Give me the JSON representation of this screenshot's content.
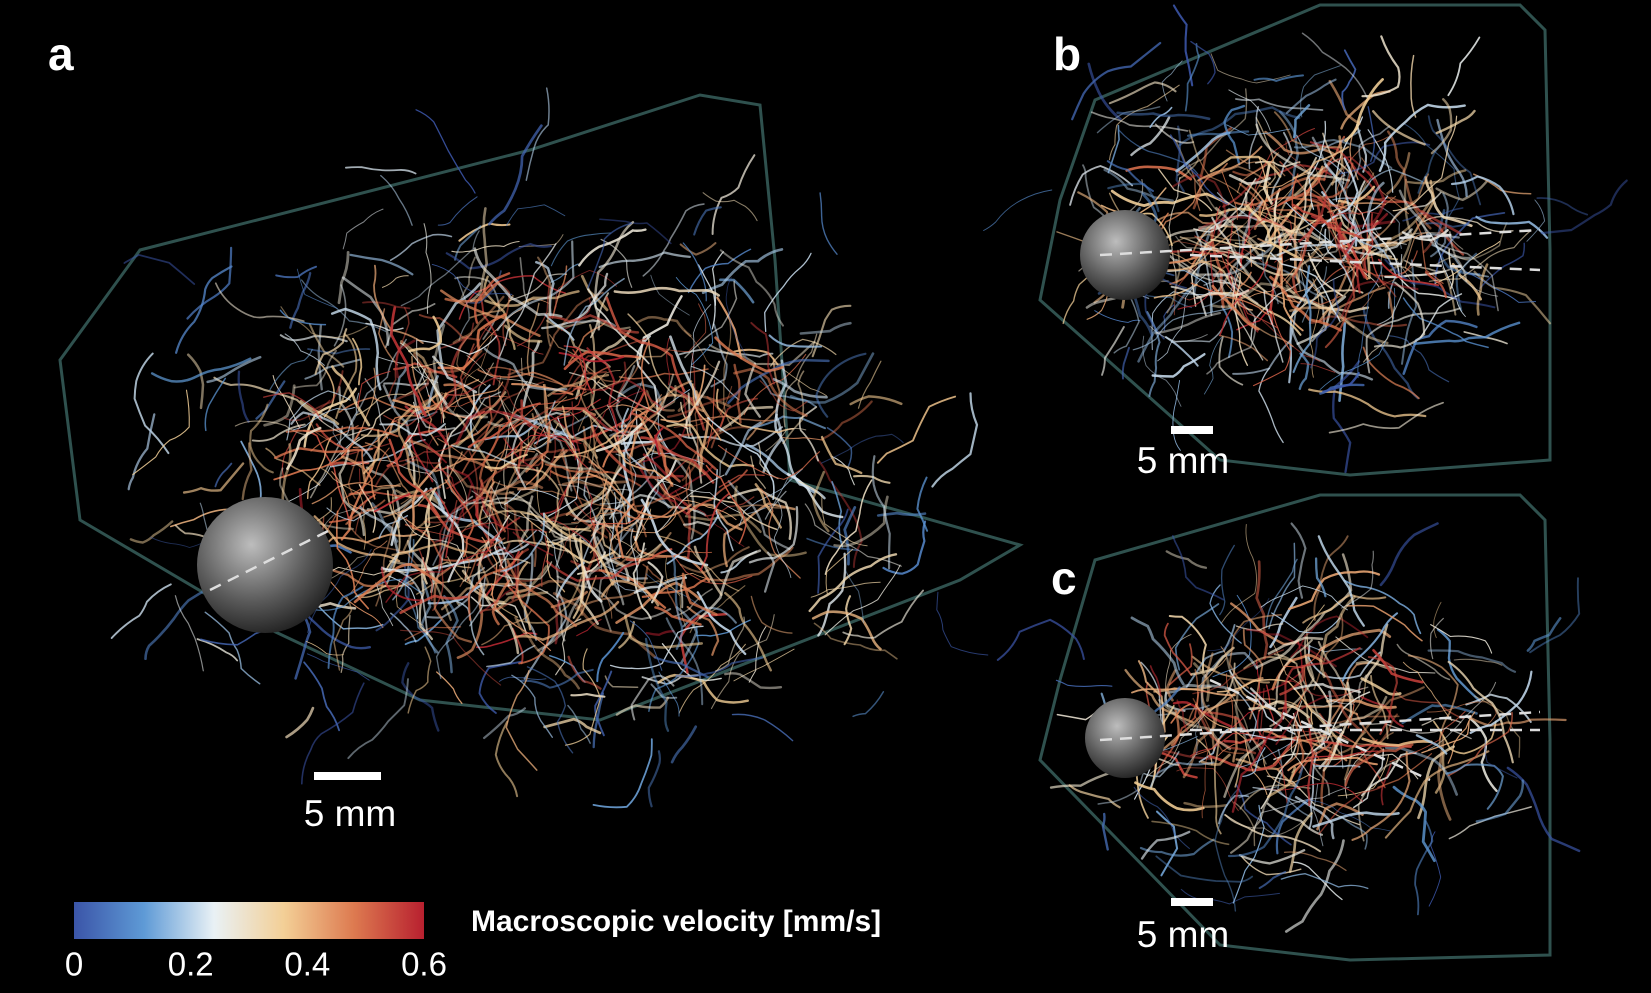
{
  "panels": [
    {
      "label": "a",
      "scale_bar": "5 mm"
    },
    {
      "label": "b",
      "scale_bar": "5 mm"
    },
    {
      "label": "c",
      "scale_bar": "5 mm"
    }
  ],
  "colorbar": {
    "label": "Macroscopic velocity [mm/s]",
    "lim": [
      0,
      0.6
    ],
    "ticks": [
      0,
      0.2,
      0.4,
      0.6
    ],
    "colormap": [
      "#3b55a8",
      "#5e9ad6",
      "#e9f1f5",
      "#f3cf96",
      "#dd7a50",
      "#b8202f"
    ]
  }
}
